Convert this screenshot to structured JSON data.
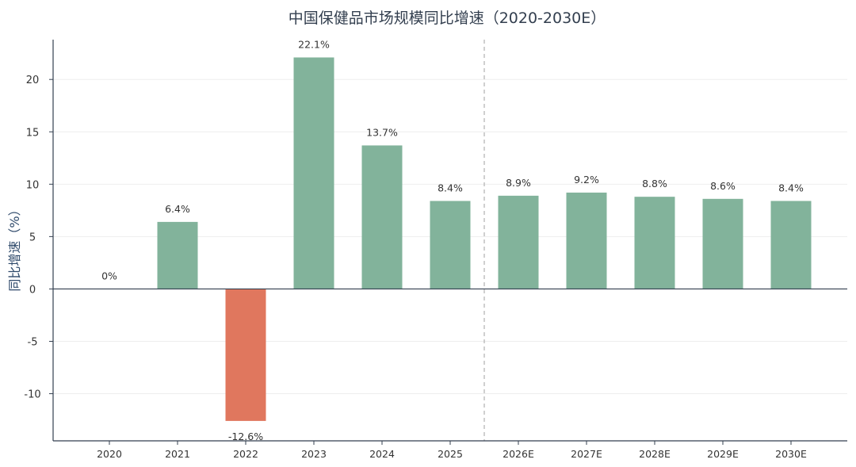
{
  "chart_data": {
    "type": "bar",
    "title": "中国保健品市场规模同比增速（2020-2030E）",
    "xlabel": "",
    "ylabel": "同比增速（%）",
    "categories": [
      "2020",
      "2021",
      "2022",
      "2023",
      "2024",
      "2025",
      "2026E",
      "2027E",
      "2028E",
      "2029E",
      "2030E"
    ],
    "values": [
      0,
      6.4,
      -12.6,
      22.1,
      13.7,
      8.4,
      8.9,
      9.2,
      8.8,
      8.6,
      8.4
    ],
    "data_labels": [
      "0%",
      "6.4%",
      "-12.6%",
      "22.1%",
      "13.7%",
      "8.4%",
      "8.9%",
      "9.2%",
      "8.8%",
      "8.6%",
      "8.4%"
    ],
    "ylim": [
      -14.5,
      23.8
    ],
    "yticks": [
      -10,
      -5,
      0,
      5,
      10,
      15,
      20
    ],
    "grid": true,
    "forecast_divider_after": "2025",
    "colors": {
      "positive": "#82b39b",
      "negative": "#e0775e",
      "axis": "#333f4f",
      "divider": "#b0b0b0",
      "grid": "#eeeeee"
    }
  }
}
